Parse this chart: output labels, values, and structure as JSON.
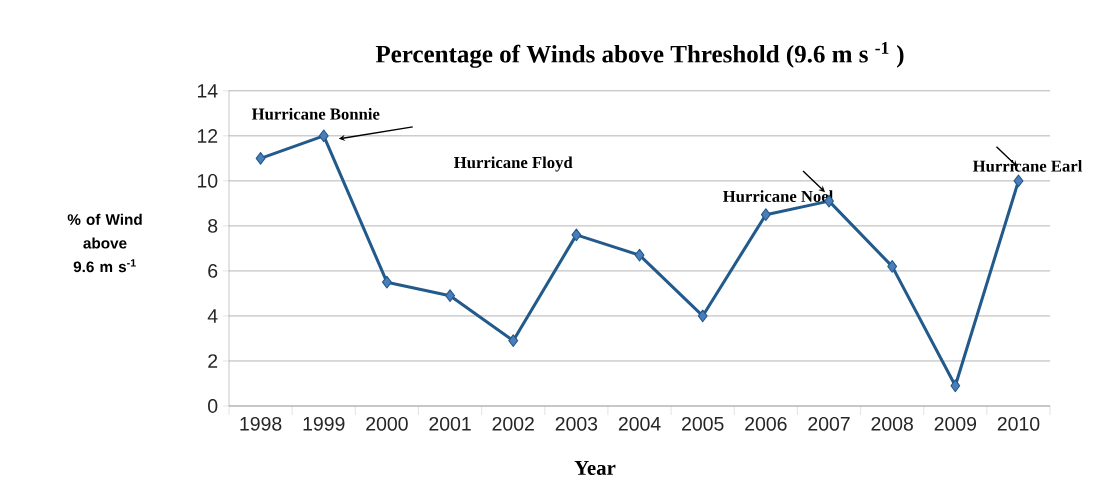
{
  "chart_data": {
    "type": "line",
    "title": "Percentage of Winds above Threshold (9.6 m s $^{-1}$ )",
    "xlabel": "Year",
    "ylabel": "% of Wind above 9.6 m s$^{-1}$",
    "categories": [
      "1998",
      "1999",
      "2000",
      "2001",
      "2002",
      "2003",
      "2004",
      "2005",
      "2006",
      "2007",
      "2008",
      "2009",
      "2010"
    ],
    "values": [
      11.0,
      12.0,
      5.5,
      4.9,
      2.9,
      7.6,
      6.7,
      4.0,
      8.5,
      9.1,
      6.2,
      0.9,
      10.0
    ],
    "color": "#235a8c",
    "marker": "diamond",
    "grid": "y",
    "ylim": [
      0,
      14
    ],
    "yticks": [
      0,
      2,
      4,
      6,
      8,
      10,
      12,
      14
    ],
    "annotations": [
      {
        "text": "Hurricane Bonnie",
        "x": "1999",
        "y": 12.0
      },
      "Hurricane Floyd",
      {
        "text": "Hurricane Noel",
        "x": "2007",
        "y": 9.1
      },
      {
        "text": "Hurricane Earl",
        "x": "2010",
        "y": 10.0
      }
    ]
  }
}
